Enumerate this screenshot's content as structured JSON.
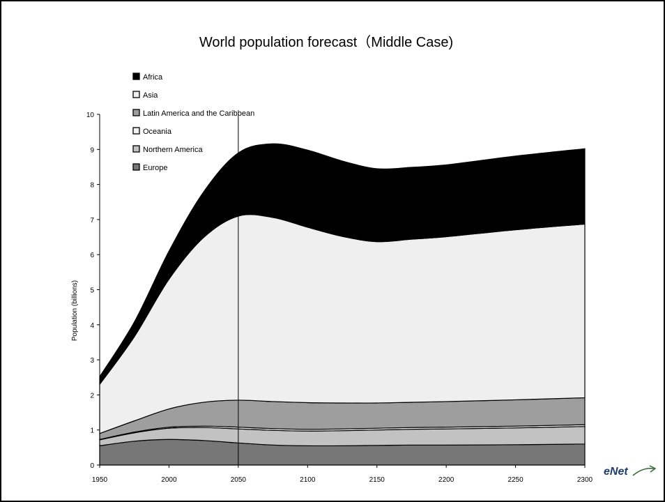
{
  "title": "World population forecast（Middle Case)",
  "logo": {
    "text": "eNet",
    "icon": "arrow-swoosh-icon"
  },
  "chart_data": {
    "type": "area",
    "stacked": true,
    "title": "World population forecast（Middle Case)",
    "xlabel": "",
    "ylabel": "Population (billions)",
    "xlim": [
      1950,
      2300
    ],
    "ylim": [
      0,
      10
    ],
    "x_ticks": [
      1950,
      2000,
      2050,
      2100,
      2150,
      2200,
      2250,
      2300
    ],
    "y_ticks": [
      0,
      1,
      2,
      3,
      4,
      5,
      6,
      7,
      8,
      9,
      10
    ],
    "reference_line_x": 2050,
    "legend_position": "top-left",
    "x": [
      1950,
      1975,
      2000,
      2025,
      2050,
      2075,
      2100,
      2125,
      2150,
      2175,
      2200,
      2250,
      2300
    ],
    "series": [
      {
        "name": "Europe",
        "color": "#777777",
        "values": [
          0.55,
          0.68,
          0.73,
          0.7,
          0.63,
          0.57,
          0.55,
          0.55,
          0.56,
          0.57,
          0.57,
          0.58,
          0.6
        ]
      },
      {
        "name": "Northern America",
        "color": "#c2c2c2",
        "values": [
          0.17,
          0.24,
          0.32,
          0.37,
          0.4,
          0.42,
          0.42,
          0.43,
          0.44,
          0.45,
          0.46,
          0.48,
          0.5
        ]
      },
      {
        "name": "Oceania",
        "color": "#f2f2f2",
        "values": [
          0.01,
          0.02,
          0.03,
          0.04,
          0.05,
          0.05,
          0.05,
          0.05,
          0.05,
          0.05,
          0.05,
          0.05,
          0.05
        ]
      },
      {
        "name": "Latin America and the Caribbean",
        "color": "#9e9e9e",
        "values": [
          0.17,
          0.32,
          0.52,
          0.68,
          0.77,
          0.77,
          0.76,
          0.74,
          0.72,
          0.72,
          0.73,
          0.75,
          0.77
        ]
      },
      {
        "name": "Asia",
        "color": "#efefef",
        "values": [
          1.4,
          2.4,
          3.7,
          4.7,
          5.25,
          5.25,
          5.0,
          4.75,
          4.6,
          4.65,
          4.7,
          4.85,
          4.95
        ]
      },
      {
        "name": "Africa",
        "color": "#000000",
        "values": [
          0.22,
          0.42,
          0.8,
          1.3,
          1.8,
          2.1,
          2.2,
          2.15,
          2.08,
          2.05,
          2.05,
          2.1,
          2.15
        ]
      }
    ]
  }
}
